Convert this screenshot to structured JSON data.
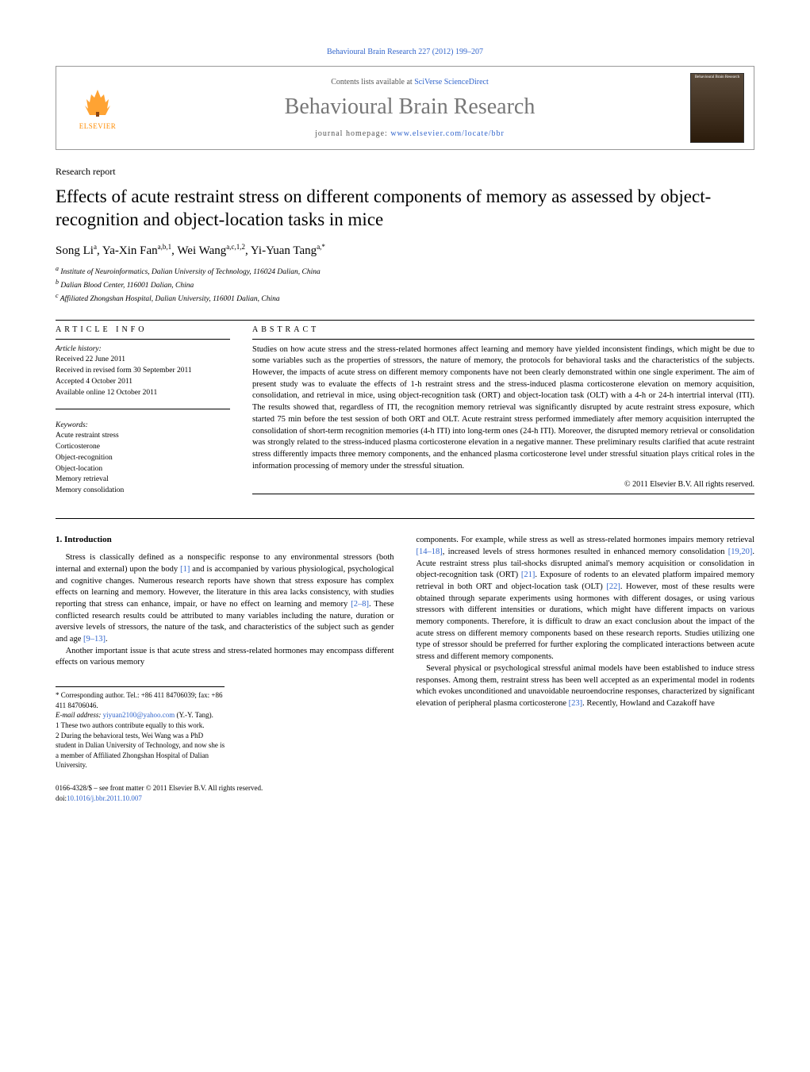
{
  "journal_header": "Behavioural Brain Research 227 (2012) 199–207",
  "header_box": {
    "contents_prefix": "Contents lists available at ",
    "contents_link": "SciVerse ScienceDirect",
    "journal_name": "Behavioural Brain Research",
    "homepage_prefix": "journal homepage: ",
    "homepage_link": "www.elsevier.com/locate/bbr",
    "publisher": "ELSEVIER"
  },
  "article_type": "Research report",
  "title": "Effects of acute restraint stress on different components of memory as assessed by object-recognition and object-location tasks in mice",
  "authors_html": "Song Li<sup>a</sup>, Ya-Xin Fan<sup>a,b,1</sup>, Wei Wang<sup>a,c,1,2</sup>, Yi-Yuan Tang<sup>a,*</sup>",
  "affiliations": [
    "a Institute of Neuroinformatics, Dalian University of Technology, 116024 Dalian, China",
    "b Dalian Blood Center, 116001 Dalian, China",
    "c Affiliated Zhongshan Hospital, Dalian University, 116001 Dalian, China"
  ],
  "article_info_heading": "ARTICLE INFO",
  "abstract_heading": "ABSTRACT",
  "history": {
    "label": "Article history:",
    "received": "Received 22 June 2011",
    "revised": "Received in revised form 30 September 2011",
    "accepted": "Accepted 4 October 2011",
    "online": "Available online 12 October 2011"
  },
  "keywords": {
    "label": "Keywords:",
    "items": [
      "Acute restraint stress",
      "Corticosterone",
      "Object-recognition",
      "Object-location",
      "Memory retrieval",
      "Memory consolidation"
    ]
  },
  "abstract": "Studies on how acute stress and the stress-related hormones affect learning and memory have yielded inconsistent findings, which might be due to some variables such as the properties of stressors, the nature of memory, the protocols for behavioral tasks and the characteristics of the subjects. However, the impacts of acute stress on different memory components have not been clearly demonstrated within one single experiment. The aim of present study was to evaluate the effects of 1-h restraint stress and the stress-induced plasma corticosterone elevation on memory acquisition, consolidation, and retrieval in mice, using object-recognition task (ORT) and object-location task (OLT) with a 4-h or 24-h intertrial interval (ITI). The results showed that, regardless of ITI, the recognition memory retrieval was significantly disrupted by acute restraint stress exposure, which started 75 min before the test session of both ORT and OLT. Acute restraint stress performed immediately after memory acquisition interrupted the consolidation of short-term recognition memories (4-h ITI) into long-term ones (24-h ITI). Moreover, the disrupted memory retrieval or consolidation was strongly related to the stress-induced plasma corticosterone elevation in a negative manner. These preliminary results clarified that acute restraint stress differently impacts three memory components, and the enhanced plasma corticosterone level under stressful situation plays critical roles in the information processing of memory under the stressful situation.",
  "copyright": "© 2011 Elsevier B.V. All rights reserved.",
  "intro_heading": "1. Introduction",
  "intro_paragraphs": [
    "Stress is classically defined as a nonspecific response to any environmental stressors (both internal and external) upon the body [1] and is accompanied by various physiological, psychological and cognitive changes. Numerous research reports have shown that stress exposure has complex effects on learning and memory. However, the literature in this area lacks consistency, with studies reporting that stress can enhance, impair, or have no effect on learning and memory [2–8]. These conflicted research results could be attributed to many variables including the nature, duration or aversive levels of stressors, the nature of the task, and characteristics of the subject such as gender and age [9–13].",
    "Another important issue is that acute stress and stress-related hormones may encompass different effects on various memory"
  ],
  "col2_paragraphs": [
    "components. For example, while stress as well as stress-related hormones impairs memory retrieval [14–18], increased levels of stress hormones resulted in enhanced memory consolidation [19,20]. Acute restraint stress plus tail-shocks disrupted animal's memory acquisition or consolidation in object-recognition task (ORT) [21]. Exposure of rodents to an elevated platform impaired memory retrieval in both ORT and object-location task (OLT) [22]. However, most of these results were obtained through separate experiments using hormones with different dosages, or using various stressors with different intensities or durations, which might have different impacts on various memory components. Therefore, it is difficult to draw an exact conclusion about the impact of the acute stress on different memory components based on these research reports. Studies utilizing one type of stressor should be preferred for further exploring the complicated interactions between acute stress and different memory components.",
    "Several physical or psychological stressful animal models have been established to induce stress responses. Among them, restraint stress has been well accepted as an experimental model in rodents which evokes unconditioned and unavoidable neuroendocrine responses, characterized by significant elevation of peripheral plasma corticosterone [23]. Recently, Howland and Cazakoff have"
  ],
  "footnotes": {
    "corresponding": "* Corresponding author. Tel.: +86 411 84706039; fax: +86 411 84706046.",
    "email_label": "E-mail address: ",
    "email": "yiyuan2100@yahoo.com",
    "email_suffix": " (Y.-Y. Tang).",
    "note1": "1 These two authors contribute equally to this work.",
    "note2": "2 During the behavioral tests, Wei Wang was a PhD student in Dalian University of Technology, and now she is a member of Affiliated Zhongshan Hospital of Dalian University."
  },
  "footer": {
    "issn": "0166-4328/$ – see front matter © 2011 Elsevier B.V. All rights reserved.",
    "doi_label": "doi:",
    "doi": "10.1016/j.bbr.2011.10.007"
  },
  "colors": {
    "link": "#3366cc",
    "elsevier_orange": "#ff8c00",
    "journal_gray": "#777777"
  }
}
